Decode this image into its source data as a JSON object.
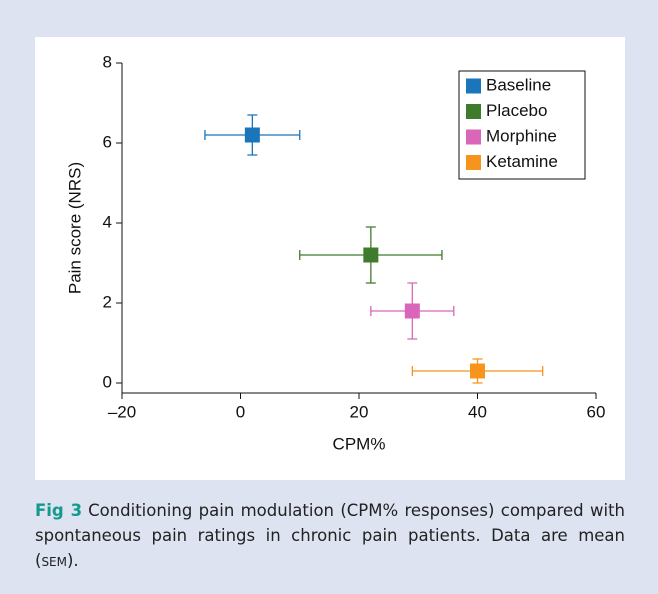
{
  "chart_data": {
    "type": "scatter",
    "xlabel": "CPM%",
    "ylabel": "Pain score (NRS)",
    "xlim": [
      -20,
      60
    ],
    "xticks": [
      {
        "value": -20,
        "label": "–20"
      },
      0,
      20,
      40,
      60
    ],
    "ylim": [
      0,
      8
    ],
    "yticks": [
      0,
      2,
      4,
      6,
      8
    ],
    "legend": "upper right",
    "series": [
      {
        "name": "Baseline",
        "color": "#1b75bb",
        "x": [
          2
        ],
        "values": [
          6.2
        ],
        "xerr": [
          8
        ],
        "yerr": [
          0.5
        ]
      },
      {
        "name": "Placebo",
        "color": "#3f7b2c",
        "x": [
          22
        ],
        "values": [
          3.2
        ],
        "xerr": [
          12
        ],
        "yerr": [
          0.7
        ]
      },
      {
        "name": "Morphine",
        "color": "#d966b8",
        "x": [
          29
        ],
        "values": [
          1.8
        ],
        "xerr": [
          7
        ],
        "yerr": [
          0.7
        ]
      },
      {
        "name": "Ketamine",
        "color": "#f7941d",
        "x": [
          40
        ],
        "values": [
          0.3
        ],
        "xerr": [
          11
        ],
        "yerr": [
          0.3
        ]
      }
    ]
  },
  "caption": {
    "label": "Fig 3",
    "text": "Conditioning pain modulation (CPM% responses) compared with spontaneous pain ratings in chronic pain patients. Data are mean (",
    "abbrev": "sem",
    "end": ")."
  }
}
